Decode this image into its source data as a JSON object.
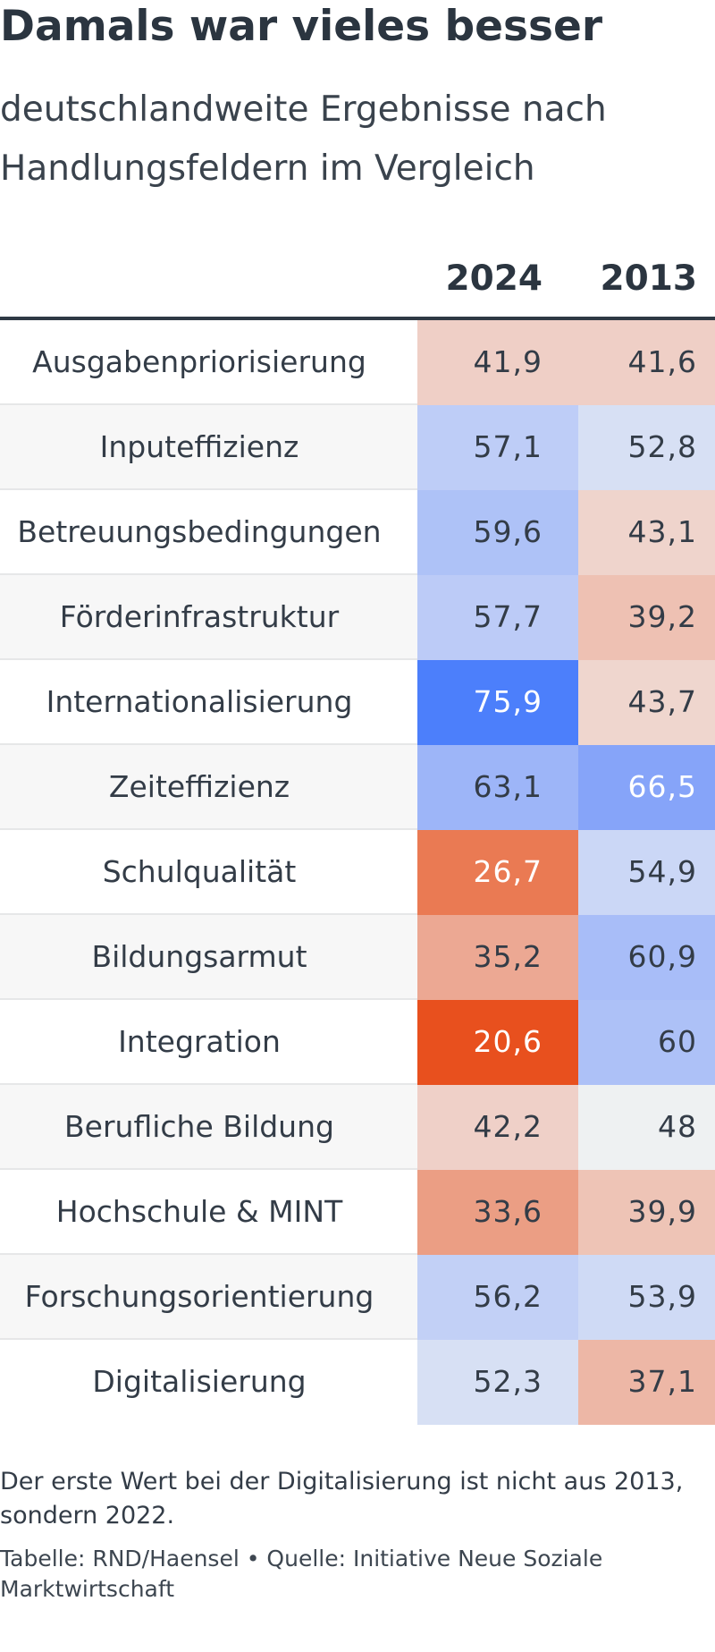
{
  "title": "Damals war vieles besser",
  "subtitle": "deutschlandweite Ergebnisse nach Handlungsfeldern im Vergleich",
  "note": "Der erste Wert bei der Digitalisierung ist nicht aus 2013, sondern 2022.",
  "source": "Tabelle: RND/Haensel • Quelle: Initiative Neue Soziale Marktwirtschaft",
  "chart_data": {
    "type": "table",
    "columns": [
      "2024",
      "2013"
    ],
    "rows": [
      {
        "label": "Ausgabenpriorisierung",
        "v2024": "41,9",
        "v2013": "41,6",
        "bg2024": "#efcfc6",
        "bg2013": "#efcfc6",
        "fg2024": "#333c47",
        "fg2013": "#333c47"
      },
      {
        "label": "Inputeffizienz",
        "v2024": "57,1",
        "v2013": "52,8",
        "bg2024": "#becdf7",
        "bg2013": "#d7e0f4",
        "fg2024": "#333c47",
        "fg2013": "#333c47"
      },
      {
        "label": "Betreuungsbedingungen",
        "v2024": "59,6",
        "v2013": "43,1",
        "bg2024": "#aec2f7",
        "bg2013": "#efd4cc",
        "fg2024": "#333c47",
        "fg2013": "#333c47"
      },
      {
        "label": "Förderinfrastruktur",
        "v2024": "57,7",
        "v2013": "39,2",
        "bg2024": "#bccbf7",
        "bg2013": "#eec1b3",
        "fg2024": "#333c47",
        "fg2013": "#333c47"
      },
      {
        "label": "Internationalisierung",
        "v2024": "75,9",
        "v2013": "43,7",
        "bg2024": "#4c7ffb",
        "bg2013": "#efd6ce",
        "fg2024": "#ffffff",
        "fg2013": "#333c47"
      },
      {
        "label": "Zeiteffizienz",
        "v2024": "63,1",
        "v2013": "66,5",
        "bg2024": "#9db5f8",
        "bg2013": "#86a4f9",
        "fg2024": "#333c47",
        "fg2013": "#ffffff"
      },
      {
        "label": "Schulqualität",
        "v2024": "26,7",
        "v2013": "54,9",
        "bg2024": "#ea7a53",
        "bg2013": "#cbd7f6",
        "fg2024": "#ffffff",
        "fg2013": "#333c47"
      },
      {
        "label": "Bildungsarmut",
        "v2024": "35,2",
        "v2013": "60,9",
        "bg2024": "#eca893",
        "bg2013": "#a8bdf8",
        "fg2024": "#333c47",
        "fg2013": "#333c47"
      },
      {
        "label": "Integration",
        "v2024": "20,6",
        "v2013": "60",
        "bg2024": "#e8501e",
        "bg2013": "#adc1f7",
        "fg2024": "#ffffff",
        "fg2013": "#333c47"
      },
      {
        "label": "Berufliche Bildung",
        "v2024": "42,2",
        "v2013": "48",
        "bg2024": "#efd0c8",
        "bg2013": "#eef1f2",
        "fg2024": "#333c47",
        "fg2013": "#333c47"
      },
      {
        "label": "Hochschule & MINT",
        "v2024": "33,6",
        "v2013": "39,9",
        "bg2024": "#eb9e84",
        "bg2013": "#eec4b6",
        "fg2024": "#333c47",
        "fg2013": "#333c47"
      },
      {
        "label": "Forschungsorientierung",
        "v2024": "56,2",
        "v2013": "53,9",
        "bg2024": "#c2d0f6",
        "bg2013": "#cfdaf5",
        "fg2024": "#333c47",
        "fg2013": "#333c47"
      },
      {
        "label": "Digitalisierung",
        "v2024": "52,3",
        "v2013": "37,1",
        "bg2024": "#d7e0f4",
        "bg2013": "#edb7a6",
        "fg2024": "#333c47",
        "fg2013": "#333c47"
      }
    ]
  }
}
